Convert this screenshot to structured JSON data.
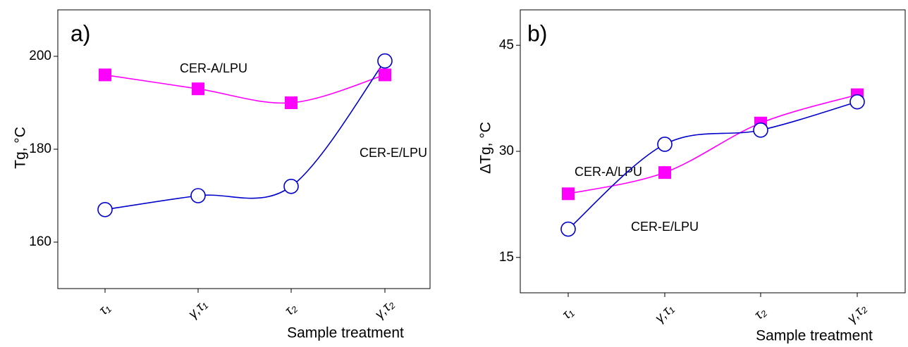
{
  "chart_data": [
    {
      "type": "line",
      "panel_label": "a)",
      "ylabel": "Tg, °C",
      "xlabel": "Sample treatment",
      "categories": [
        "τ₁",
        "γ,τ₁",
        "τ₂",
        "γ,τ₂"
      ],
      "ylim": [
        150,
        210
      ],
      "yticks": [
        160,
        180,
        200
      ],
      "series": [
        {
          "name": "CER-A/LPU",
          "color": "#ff00ff",
          "marker": "square",
          "values": [
            196,
            193,
            190,
            196
          ]
        },
        {
          "name": "CER-E/LPU",
          "color": "#0000cc",
          "marker": "circle",
          "values": [
            167,
            170,
            172,
            199
          ]
        }
      ]
    },
    {
      "type": "line",
      "panel_label": "b)",
      "ylabel": "ΔTg, °C",
      "xlabel": "Sample treatment",
      "categories": [
        "τ₁",
        "γ,τ₁",
        "τ₂",
        "γ,τ₂"
      ],
      "ylim": [
        10,
        50
      ],
      "yticks": [
        15,
        30,
        45
      ],
      "series": [
        {
          "name": "CER-A/LPU",
          "color": "#ff00ff",
          "marker": "square",
          "values": [
            24,
            27,
            34,
            38
          ]
        },
        {
          "name": "CER-E/LPU",
          "color": "#0000cc",
          "marker": "circle",
          "values": [
            19,
            31,
            33,
            37
          ]
        }
      ]
    }
  ]
}
